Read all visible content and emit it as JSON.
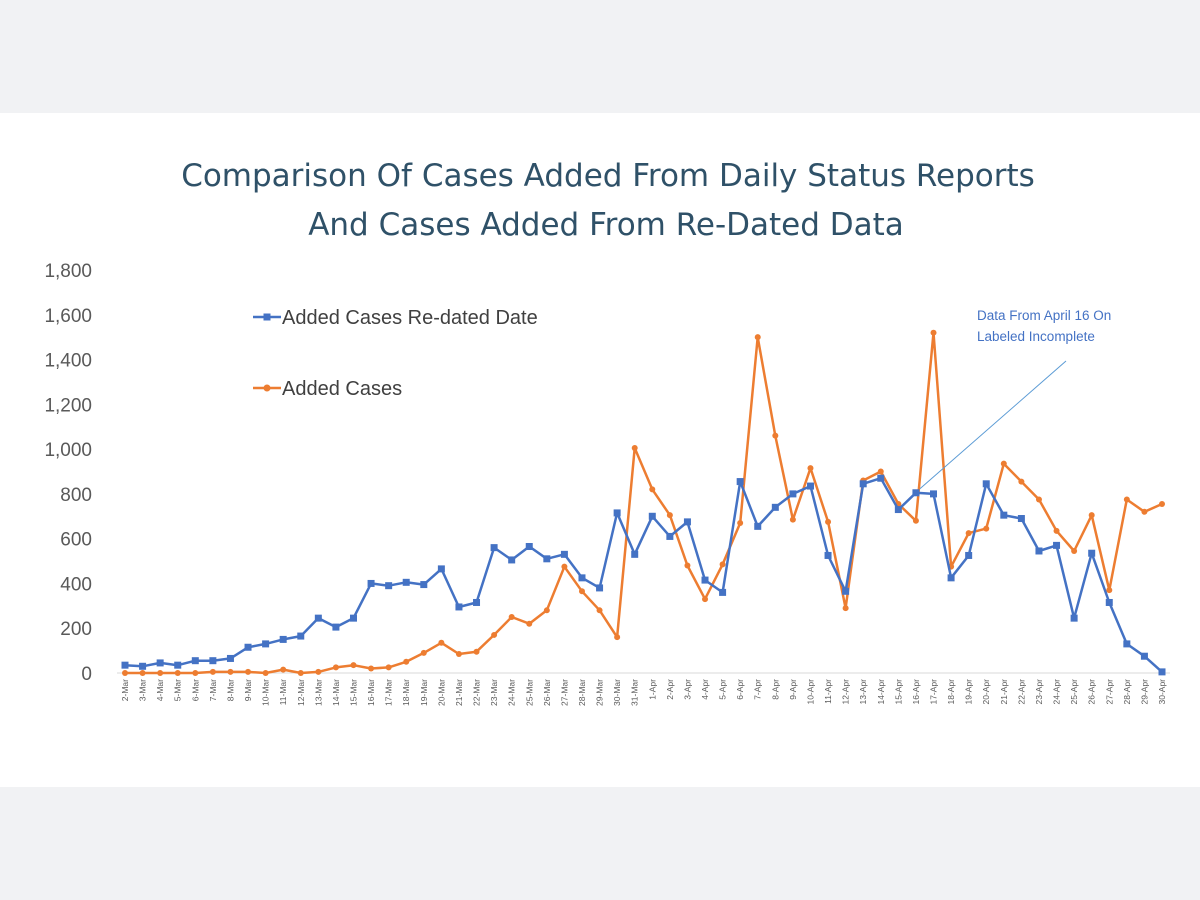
{
  "chart_data": {
    "type": "line",
    "title": [
      "Comparison Of Cases Added From Daily Status Reports",
      "And Cases Added From Re-Dated Data"
    ],
    "xlabel": "",
    "ylabel": "",
    "ylim": [
      0,
      1800
    ],
    "yticks": [
      "0",
      "200",
      "400",
      "600",
      "800",
      "1,000",
      "1,200",
      "1,400",
      "1,600",
      "1,800"
    ],
    "grid": false,
    "legend_position": "top-left",
    "categories": [
      "2-Mar",
      "3-Mar",
      "4-Mar",
      "5-Mar",
      "6-Mar",
      "7-Mar",
      "8-Mar",
      "9-Mar",
      "10-Mar",
      "11-Mar",
      "12-Mar",
      "13-Mar",
      "14-Mar",
      "15-Mar",
      "16-Mar",
      "17-Mar",
      "18-Mar",
      "19-Mar",
      "20-Mar",
      "21-Mar",
      "22-Mar",
      "23-Mar",
      "24-Mar",
      "25-Mar",
      "26-Mar",
      "27-Mar",
      "28-Mar",
      "29-Mar",
      "30-Mar",
      "31-Mar",
      "1-Apr",
      "2-Apr",
      "3-Apr",
      "4-Apr",
      "5-Apr",
      "6-Apr",
      "7-Apr",
      "8-Apr",
      "9-Apr",
      "10-Apr",
      "11-Apr",
      "12-Apr",
      "13-Apr",
      "14-Apr",
      "15-Apr",
      "16-Apr",
      "17-Apr",
      "18-Apr",
      "19-Apr",
      "20-Apr",
      "21-Apr",
      "22-Apr",
      "23-Apr",
      "24-Apr",
      "25-Apr",
      "26-Apr",
      "27-Apr",
      "28-Apr",
      "29-Apr",
      "30-Apr"
    ],
    "series": [
      {
        "name": "Added Cases Re-dated Date",
        "color": "#4472c4",
        "marker": "square",
        "values": [
          35,
          30,
          45,
          35,
          55,
          55,
          65,
          115,
          130,
          150,
          165,
          245,
          205,
          245,
          400,
          390,
          405,
          395,
          465,
          295,
          315,
          560,
          505,
          565,
          510,
          530,
          425,
          380,
          715,
          530,
          700,
          610,
          675,
          415,
          360,
          855,
          655,
          740,
          800,
          835,
          525,
          365,
          845,
          870,
          730,
          805,
          800,
          425,
          525,
          845,
          705,
          690,
          545,
          570,
          245,
          535,
          315,
          130,
          75,
          5
        ]
      },
      {
        "name": "Added Cases",
        "color": "#ed7d31",
        "marker": "circle",
        "values": [
          0,
          0,
          0,
          0,
          0,
          5,
          5,
          5,
          0,
          15,
          0,
          5,
          25,
          35,
          20,
          25,
          50,
          90,
          135,
          85,
          95,
          170,
          250,
          220,
          280,
          475,
          365,
          280,
          160,
          1005,
          820,
          705,
          480,
          330,
          485,
          670,
          1500,
          1060,
          685,
          915,
          675,
          290,
          860,
          900,
          755,
          680,
          1520,
          475,
          625,
          645,
          935,
          855,
          775,
          635,
          545,
          705,
          370,
          775,
          720,
          755
        ]
      }
    ],
    "annotation": {
      "lines": [
        "Data From April 16 On",
        "Labeled Incomplete"
      ],
      "points_to": "16-Apr"
    }
  }
}
